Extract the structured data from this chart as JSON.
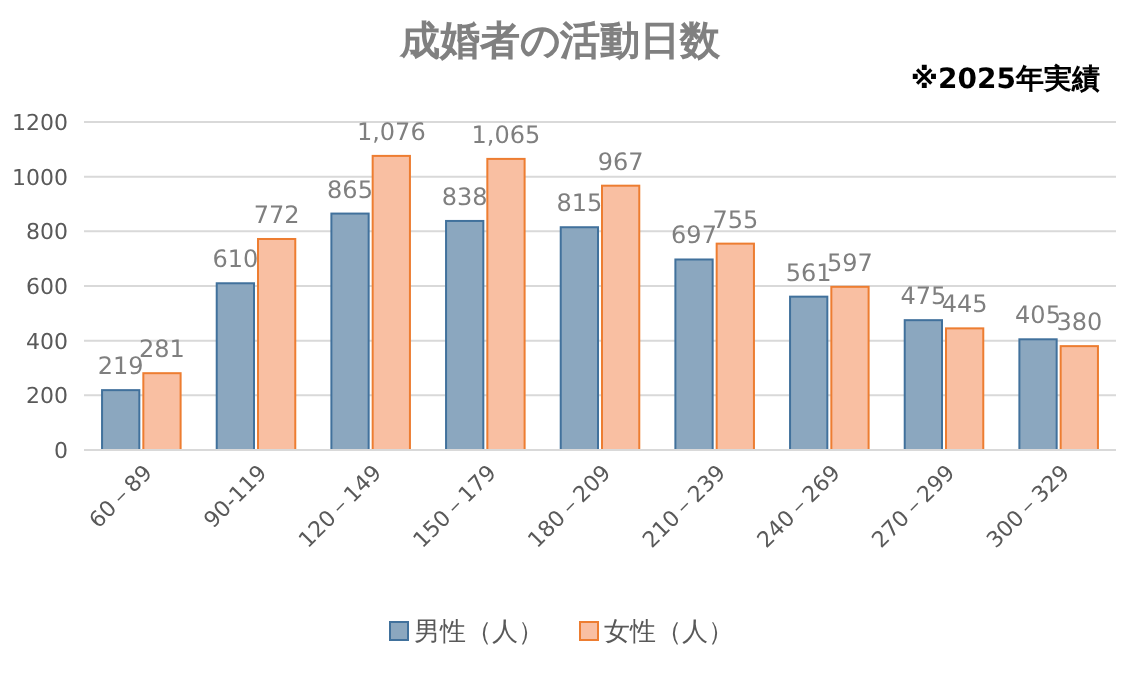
{
  "chart_data": {
    "type": "bar",
    "title": "成婚者の活動日数",
    "annotations": [
      "※2025年実績"
    ],
    "categories": [
      "60－89",
      "90-119",
      "120－149",
      "150－179",
      "180－209",
      "210－239",
      "240－269",
      "270－299",
      "300－329"
    ],
    "series": [
      {
        "name": "男性（人）",
        "color": "#8ba7bf",
        "values": [
          219,
          610,
          865,
          838,
          815,
          697,
          561,
          475,
          405
        ],
        "value_labels": [
          "219",
          "610",
          "865",
          "838",
          "815",
          "697",
          "561",
          "475",
          "405"
        ]
      },
      {
        "name": "女性（人）",
        "color": "#f9bfa2",
        "values": [
          281,
          772,
          1076,
          1065,
          967,
          755,
          597,
          445,
          380
        ],
        "value_labels": [
          "281",
          "772",
          "1,076",
          "1,065",
          "967",
          "755",
          "597",
          "445",
          "380"
        ]
      }
    ],
    "ylim": [
      0,
      1200
    ],
    "yticks": [
      0,
      200,
      400,
      600,
      800,
      1000,
      1200
    ],
    "grid": "y",
    "legend": "bottom"
  }
}
